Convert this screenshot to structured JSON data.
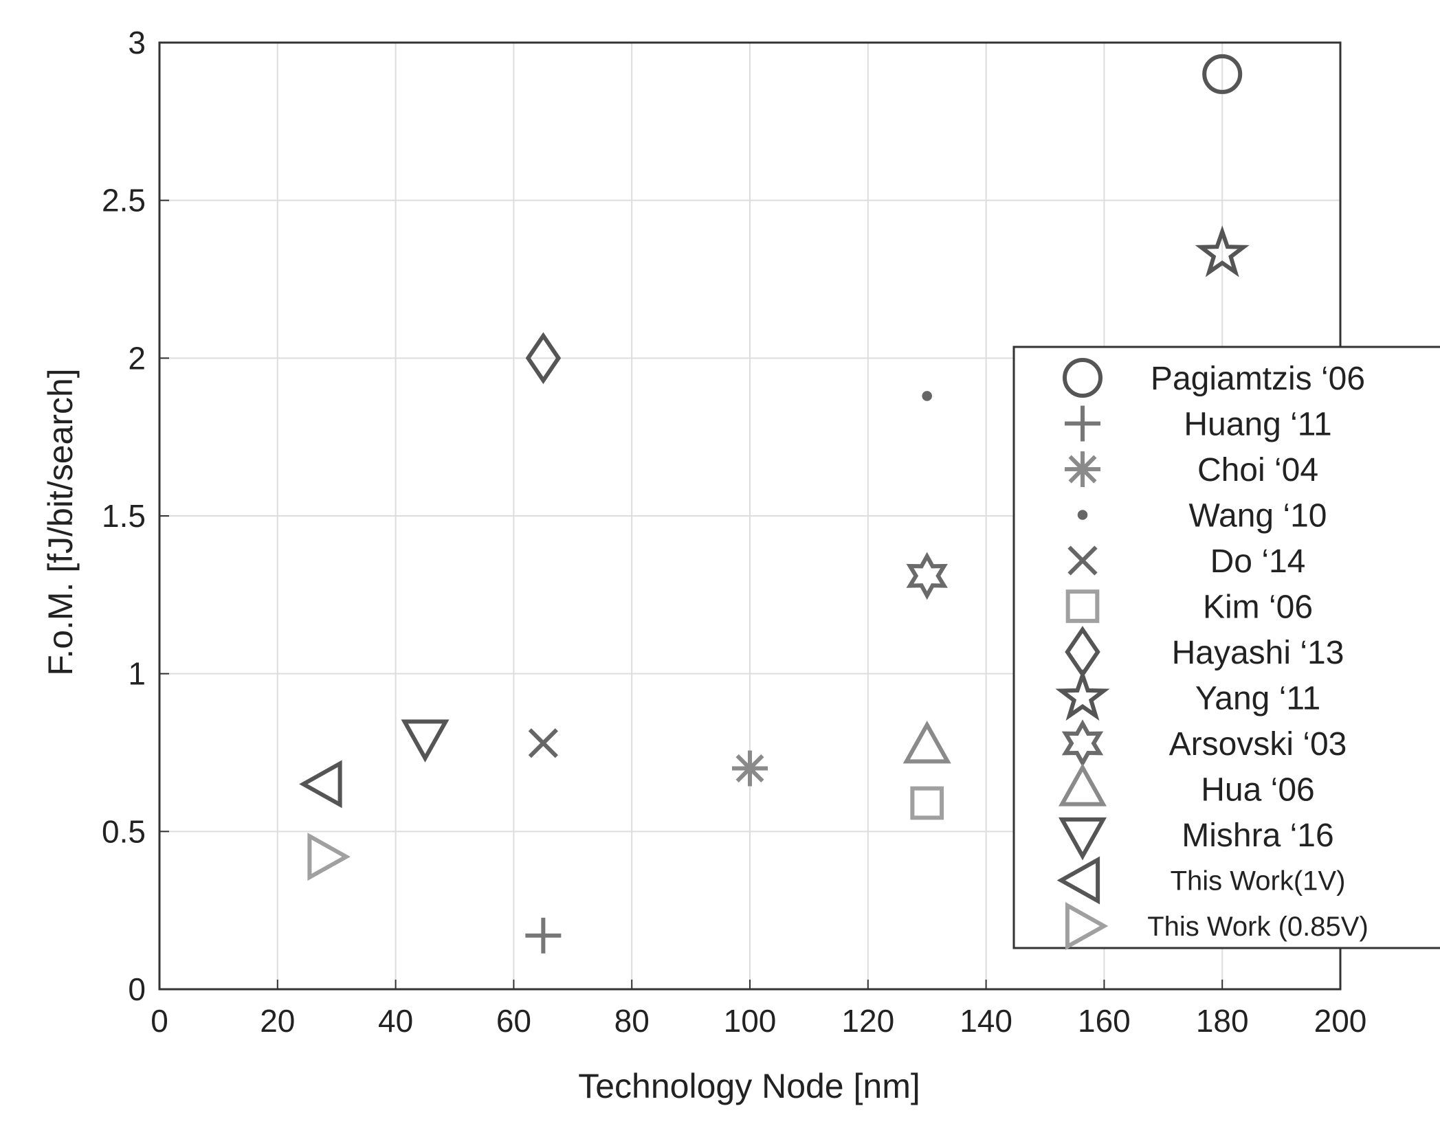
{
  "chart_data": {
    "type": "scatter",
    "xlabel": "Technology Node [nm]",
    "ylabel": "F.o.M. [fJ/bit/search]",
    "xlim": [
      0,
      200
    ],
    "ylim": [
      0,
      3
    ],
    "x_ticks": [
      "0",
      "20",
      "40",
      "60",
      "80",
      "100",
      "120",
      "140",
      "160",
      "180",
      "200"
    ],
    "y_ticks": [
      "0",
      "0.5",
      "1",
      "1.5",
      "2",
      "2.5",
      "3"
    ],
    "grid": true,
    "legend_position": "right",
    "series": [
      {
        "name": "Pagiamtzis ‘06",
        "marker": "circle",
        "color": "#555555",
        "x": 180,
        "y": 2.9
      },
      {
        "name": "Huang ‘11",
        "marker": "plus",
        "color": "#777777",
        "x": 65,
        "y": 0.17
      },
      {
        "name": "Choi ‘04",
        "marker": "asterisk",
        "color": "#8a8a8a",
        "x": 100,
        "y": 0.7
      },
      {
        "name": "Wang ‘10",
        "marker": "dot",
        "color": "#666666",
        "x": 130,
        "y": 1.88
      },
      {
        "name": "Do ‘14",
        "marker": "x",
        "color": "#666666",
        "x": 65,
        "y": 0.78
      },
      {
        "name": "Kim ‘06",
        "marker": "square",
        "color": "#a0a0a0",
        "x": 130,
        "y": 0.59
      },
      {
        "name": "Hayashi ‘13",
        "marker": "diamond",
        "color": "#555555",
        "x": 65,
        "y": 2.0
      },
      {
        "name": "Yang ‘11",
        "marker": "star5",
        "color": "#555555",
        "x": 180,
        "y": 2.33
      },
      {
        "name": "Arsovski ‘03",
        "marker": "star6",
        "color": "#6a6a6a",
        "x": 130,
        "y": 1.31
      },
      {
        "name": "Hua ‘06",
        "marker": "triangle-up",
        "color": "#8a8a8a",
        "x": 130,
        "y": 0.77
      },
      {
        "name": "Mishra ‘16",
        "marker": "triangle-down",
        "color": "#555555",
        "x": 45,
        "y": 0.8
      },
      {
        "name": "This Work(1V)",
        "marker": "triangle-left",
        "color": "#555555",
        "x": 28,
        "y": 0.65
      },
      {
        "name": "This Work (0.85V)",
        "marker": "triangle-right",
        "color": "#a0a0a0",
        "x": 28,
        "y": 0.42
      }
    ]
  }
}
